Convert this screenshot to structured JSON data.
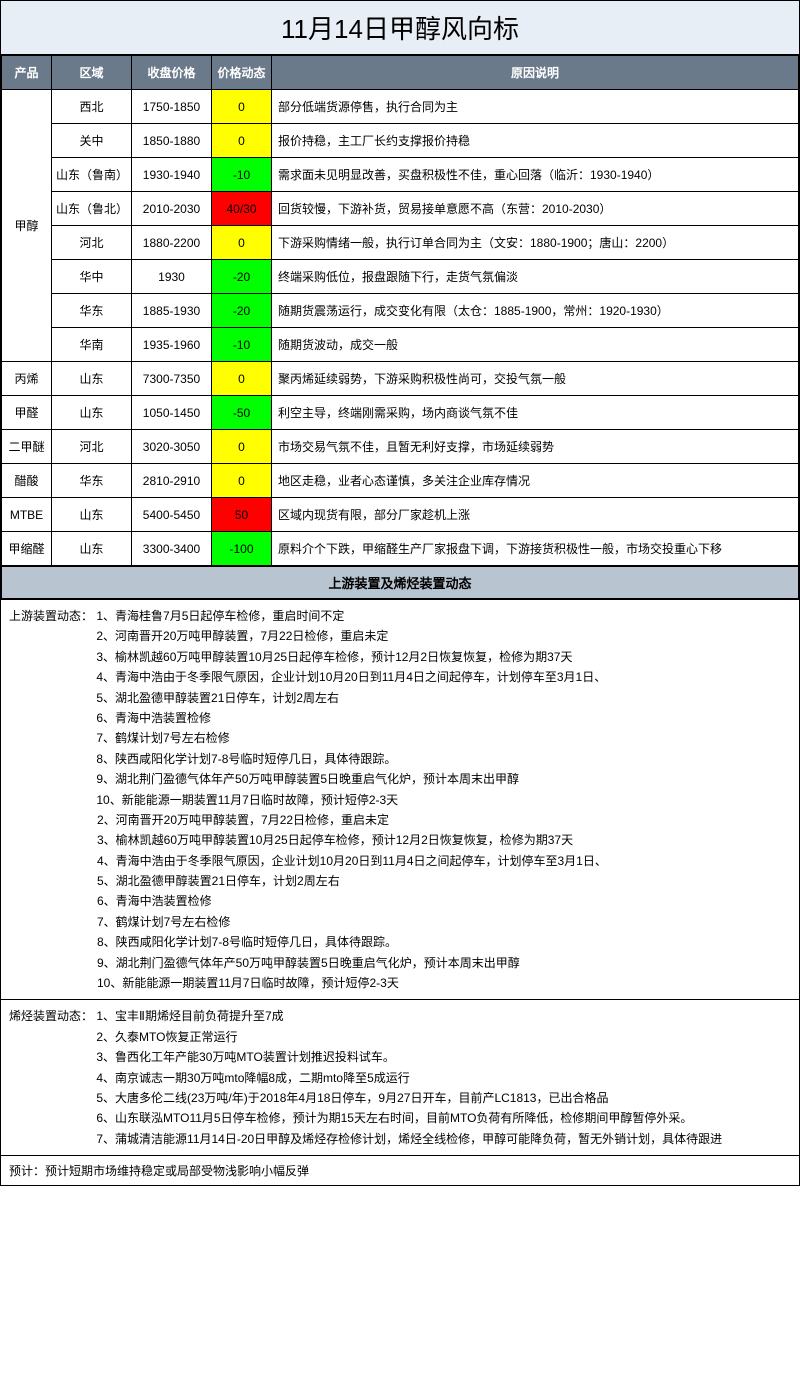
{
  "title": "11月14日甲醇风向标",
  "headers": {
    "product": "产品",
    "region": "区域",
    "close_price": "收盘价格",
    "price_change": "价格动态",
    "reason": "原因说明"
  },
  "colors": {
    "yellow": "#ffff00",
    "green": "#00ff00",
    "red": "#ff0000",
    "header_bg": "#6a7a8a",
    "section_bg": "#b8c4d0",
    "title_bg": "#e8eef5"
  },
  "rows": [
    {
      "product": "甲醇",
      "rowspan": 8,
      "region": "西北",
      "price": "1750-1850",
      "change": "0",
      "change_color": "yellow",
      "reason": "部分低端货源停售，执行合同为主"
    },
    {
      "region": "关中",
      "price": "1850-1880",
      "change": "0",
      "change_color": "yellow",
      "reason": "报价持稳，主工厂长约支撑报价持稳"
    },
    {
      "region": "山东（鲁南）",
      "price": "1930-1940",
      "change": "-10",
      "change_color": "green",
      "reason": "需求面未见明显改善，买盘积极性不佳，重心回落（临沂：1930-1940）"
    },
    {
      "region": "山东（鲁北）",
      "price": "2010-2030",
      "change": "40/30",
      "change_color": "red",
      "reason": "回货较慢，下游补货，贸易接单意愿不高（东营：2010-2030）"
    },
    {
      "region": "河北",
      "price": "1880-2200",
      "change": "0",
      "change_color": "yellow",
      "reason": "下游采购情绪一般，执行订单合同为主（文安：1880-1900；唐山：2200）"
    },
    {
      "region": "华中",
      "price": "1930",
      "change": "-20",
      "change_color": "green",
      "reason": "终端采购低位，报盘跟随下行，走货气氛偏淡"
    },
    {
      "region": "华东",
      "price": "1885-1930",
      "change": "-20",
      "change_color": "green",
      "reason": "随期货震荡运行，成交变化有限（太仓：1885-1900，常州：1920-1930）"
    },
    {
      "region": "华南",
      "price": "1935-1960",
      "change": "-10",
      "change_color": "green",
      "reason": "随期货波动，成交一般"
    },
    {
      "product": "丙烯",
      "rowspan": 1,
      "region": "山东",
      "price": "7300-7350",
      "change": "0",
      "change_color": "yellow",
      "reason": "聚丙烯延续弱势，下游采购积极性尚可，交投气氛一般"
    },
    {
      "product": "甲醛",
      "rowspan": 1,
      "region": "山东",
      "price": "1050-1450",
      "change": "-50",
      "change_color": "green",
      "reason": "利空主导，终端刚需采购，场内商谈气氛不佳"
    },
    {
      "product": "二甲醚",
      "rowspan": 1,
      "region": "河北",
      "price": "3020-3050",
      "change": "0",
      "change_color": "yellow",
      "reason": "市场交易气氛不佳，且暂无利好支撑，市场延续弱势"
    },
    {
      "product": "醋酸",
      "rowspan": 1,
      "region": "华东",
      "price": "2810-2910",
      "change": "0",
      "change_color": "yellow",
      "reason": "地区走稳，业者心态谨慎，多关注企业库存情况"
    },
    {
      "product": "MTBE",
      "rowspan": 1,
      "region": "山东",
      "price": "5400-5450",
      "change": "50",
      "change_color": "red",
      "reason": "区域内现货有限，部分厂家趁机上涨"
    },
    {
      "product": "甲缩醛",
      "rowspan": 1,
      "region": "山东",
      "price": "3300-3400",
      "change": "-100",
      "change_color": "green",
      "reason": "原料介个下跌，甲缩醛生产厂家报盘下调，下游接货积极性一般，市场交投重心下移"
    }
  ],
  "section2_title": "上游装置及烯烃装置动态",
  "upstream": {
    "label": "上游装置动态：",
    "items": [
      "1、青海桂鲁7月5日起停车检修，重启时间不定",
      "2、河南晋开20万吨甲醇装置，7月22日检修，重启未定",
      "3、榆林凯越60万吨甲醇装置10月25日起停车检修，预计12月2日恢复恢复，检修为期37天",
      "4、青海中浩由于冬季限气原因，企业计划10月20日到11月4日之间起停车，计划停车至3月1日、",
      "5、湖北盈德甲醇装置21日停车，计划2周左右",
      "6、青海中浩装置检修",
      "7、鹤煤计划7号左右检修",
      "8、陕西咸阳化学计划7-8号临时短停几日，具体待跟踪。",
      "9、湖北荆门盈德气体年产50万吨甲醇装置5日晚重启气化炉，预计本周末出甲醇",
      "10、新能能源一期装置11月7日临时故障，预计短停2-3天"
    ]
  },
  "olefin": {
    "label": "烯烃装置动态：",
    "items": [
      "1、宝丰Ⅱ期烯烃目前负荷提升至7成",
      "2、久泰MTO恢复正常运行",
      "3、鲁西化工年产能30万吨MTO装置计划推迟投料试车。",
      "4、南京诚志一期30万吨mto降幅8成，二期mto降至5成运行",
      "5、大唐多伦二线(23万吨/年)于2018年4月18日停车，9月27日开车，目前产LC1813，已出合格品",
      "6、山东联泓MTO11月5日停车检修，预计为期15天左右时间，目前MTO负荷有所降低，检修期间甲醇暂停外采。",
      "7、蒲城清洁能源11月14日-20日甲醇及烯烃存检修计划，烯烃全线检修，甲醇可能降负荷，暂无外销计划，具体待跟进"
    ]
  },
  "forecast": {
    "label": "预计：",
    "text": "预计短期市场维持稳定或局部受物浅影响小幅反弹"
  }
}
